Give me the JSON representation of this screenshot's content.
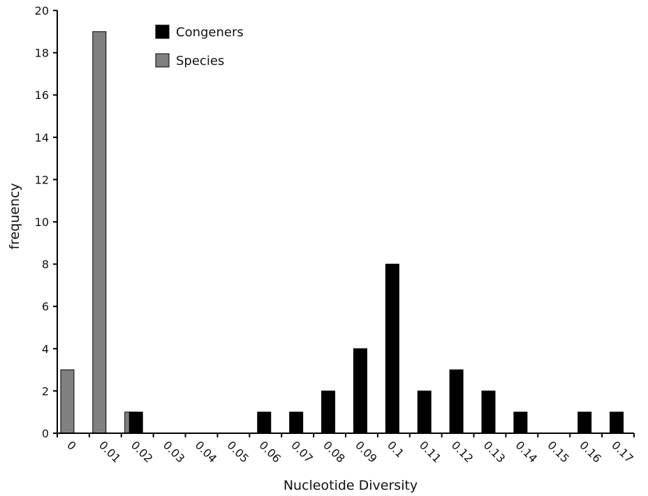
{
  "chart_data": {
    "type": "bar",
    "xlabel": "Nucleotide Diversity",
    "ylabel": "frequency",
    "ylim": [
      0,
      20
    ],
    "yticks": [
      0,
      2,
      4,
      6,
      8,
      10,
      12,
      14,
      16,
      18,
      20
    ],
    "categories": [
      "0",
      "0.01",
      "0.02",
      "0.03",
      "0.04",
      "0.05",
      "0.06",
      "0.07",
      "0.08",
      "0.09",
      "0.1",
      "0.11",
      "0.12",
      "0.13",
      "0.14",
      "0.15",
      "0.16",
      "0.17"
    ],
    "series": [
      {
        "name": "Congeners",
        "color": "#000000",
        "values": [
          0,
          0,
          1,
          0,
          0,
          0,
          1,
          1,
          2,
          4,
          8,
          2,
          3,
          2,
          1,
          0,
          1,
          1
        ]
      },
      {
        "name": "Species",
        "color": "#808080",
        "values": [
          3,
          19,
          1,
          0,
          0,
          0,
          0,
          0,
          0,
          0,
          0,
          0,
          0,
          0,
          0,
          0,
          0,
          0
        ]
      }
    ],
    "legend_position": "top-left",
    "grid": false
  }
}
